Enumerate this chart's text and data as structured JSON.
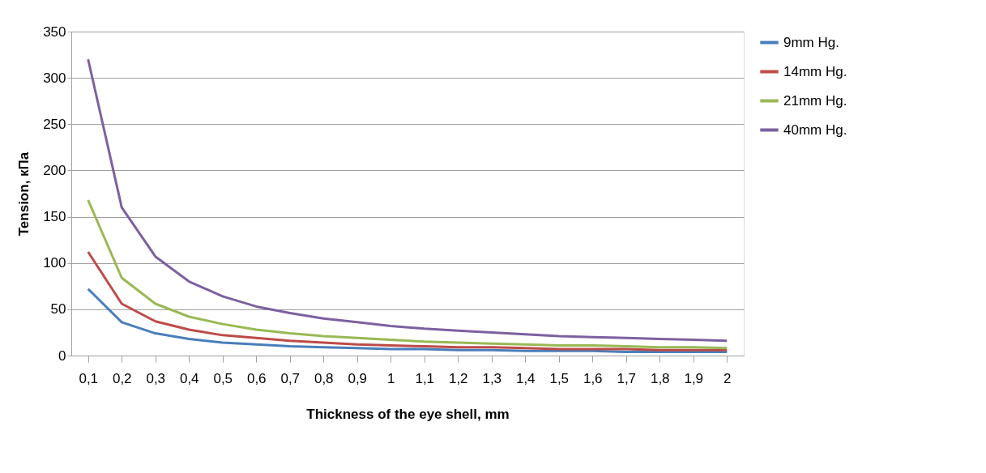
{
  "chart_data": {
    "type": "line",
    "xlabel": "Thickness of the eye shell, mm",
    "ylabel": "Tension, кПа",
    "categories": [
      "0,1",
      "0,2",
      "0,3",
      "0,4",
      "0,5",
      "0,6",
      "0,7",
      "0,8",
      "0,9",
      "1",
      "1,1",
      "1,2",
      "1,3",
      "1,4",
      "1,5",
      "1,6",
      "1,7",
      "1,8",
      "1,9",
      "2"
    ],
    "series": [
      {
        "name": "9mm Hg.",
        "color": "#4a7ebb",
        "values": [
          72,
          36,
          24,
          18,
          14,
          12,
          10,
          9,
          8,
          7,
          7,
          6,
          6,
          5,
          5,
          5,
          4,
          4,
          4,
          4
        ]
      },
      {
        "name": "14mm Hg.",
        "color": "#be4b48",
        "values": [
          112,
          56,
          37,
          28,
          22,
          19,
          16,
          14,
          12,
          11,
          10,
          9,
          9,
          8,
          7,
          7,
          7,
          6,
          6,
          6
        ]
      },
      {
        "name": "21mm Hg.",
        "color": "#98b954",
        "values": [
          168,
          84,
          56,
          42,
          34,
          28,
          24,
          21,
          19,
          17,
          15,
          14,
          13,
          12,
          11,
          11,
          10,
          9,
          9,
          8
        ]
      },
      {
        "name": "40mm Hg.",
        "color": "#7d60a0",
        "values": [
          320,
          160,
          107,
          80,
          64,
          53,
          46,
          40,
          36,
          32,
          29,
          27,
          25,
          23,
          21,
          20,
          19,
          18,
          17,
          16
        ]
      }
    ],
    "ylim": [
      0,
      350
    ],
    "yticks": [
      0,
      50,
      100,
      150,
      200,
      250,
      300,
      350
    ],
    "grid": "y",
    "legend": "right",
    "marker": "none",
    "line_style": "solid"
  }
}
